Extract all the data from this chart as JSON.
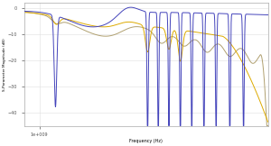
{
  "title": "",
  "xlabel": "Frequency (Hz)",
  "ylabel": "S-Parameter Magnitude (dB)",
  "xlim": [
    0,
    16000000000.0
  ],
  "ylim": [
    -45,
    2
  ],
  "yticks": [
    0,
    -10,
    -20,
    -30,
    -40
  ],
  "xtick_label": "1e+009",
  "xtick_pos": 1000000000.0,
  "background_color": "#ffffff",
  "grid_color": "#e0e0e0",
  "line_blue": "#4444bb",
  "line_yellow": "#ddaa00",
  "line_gray": "#b0a070",
  "linewidth": 0.7
}
